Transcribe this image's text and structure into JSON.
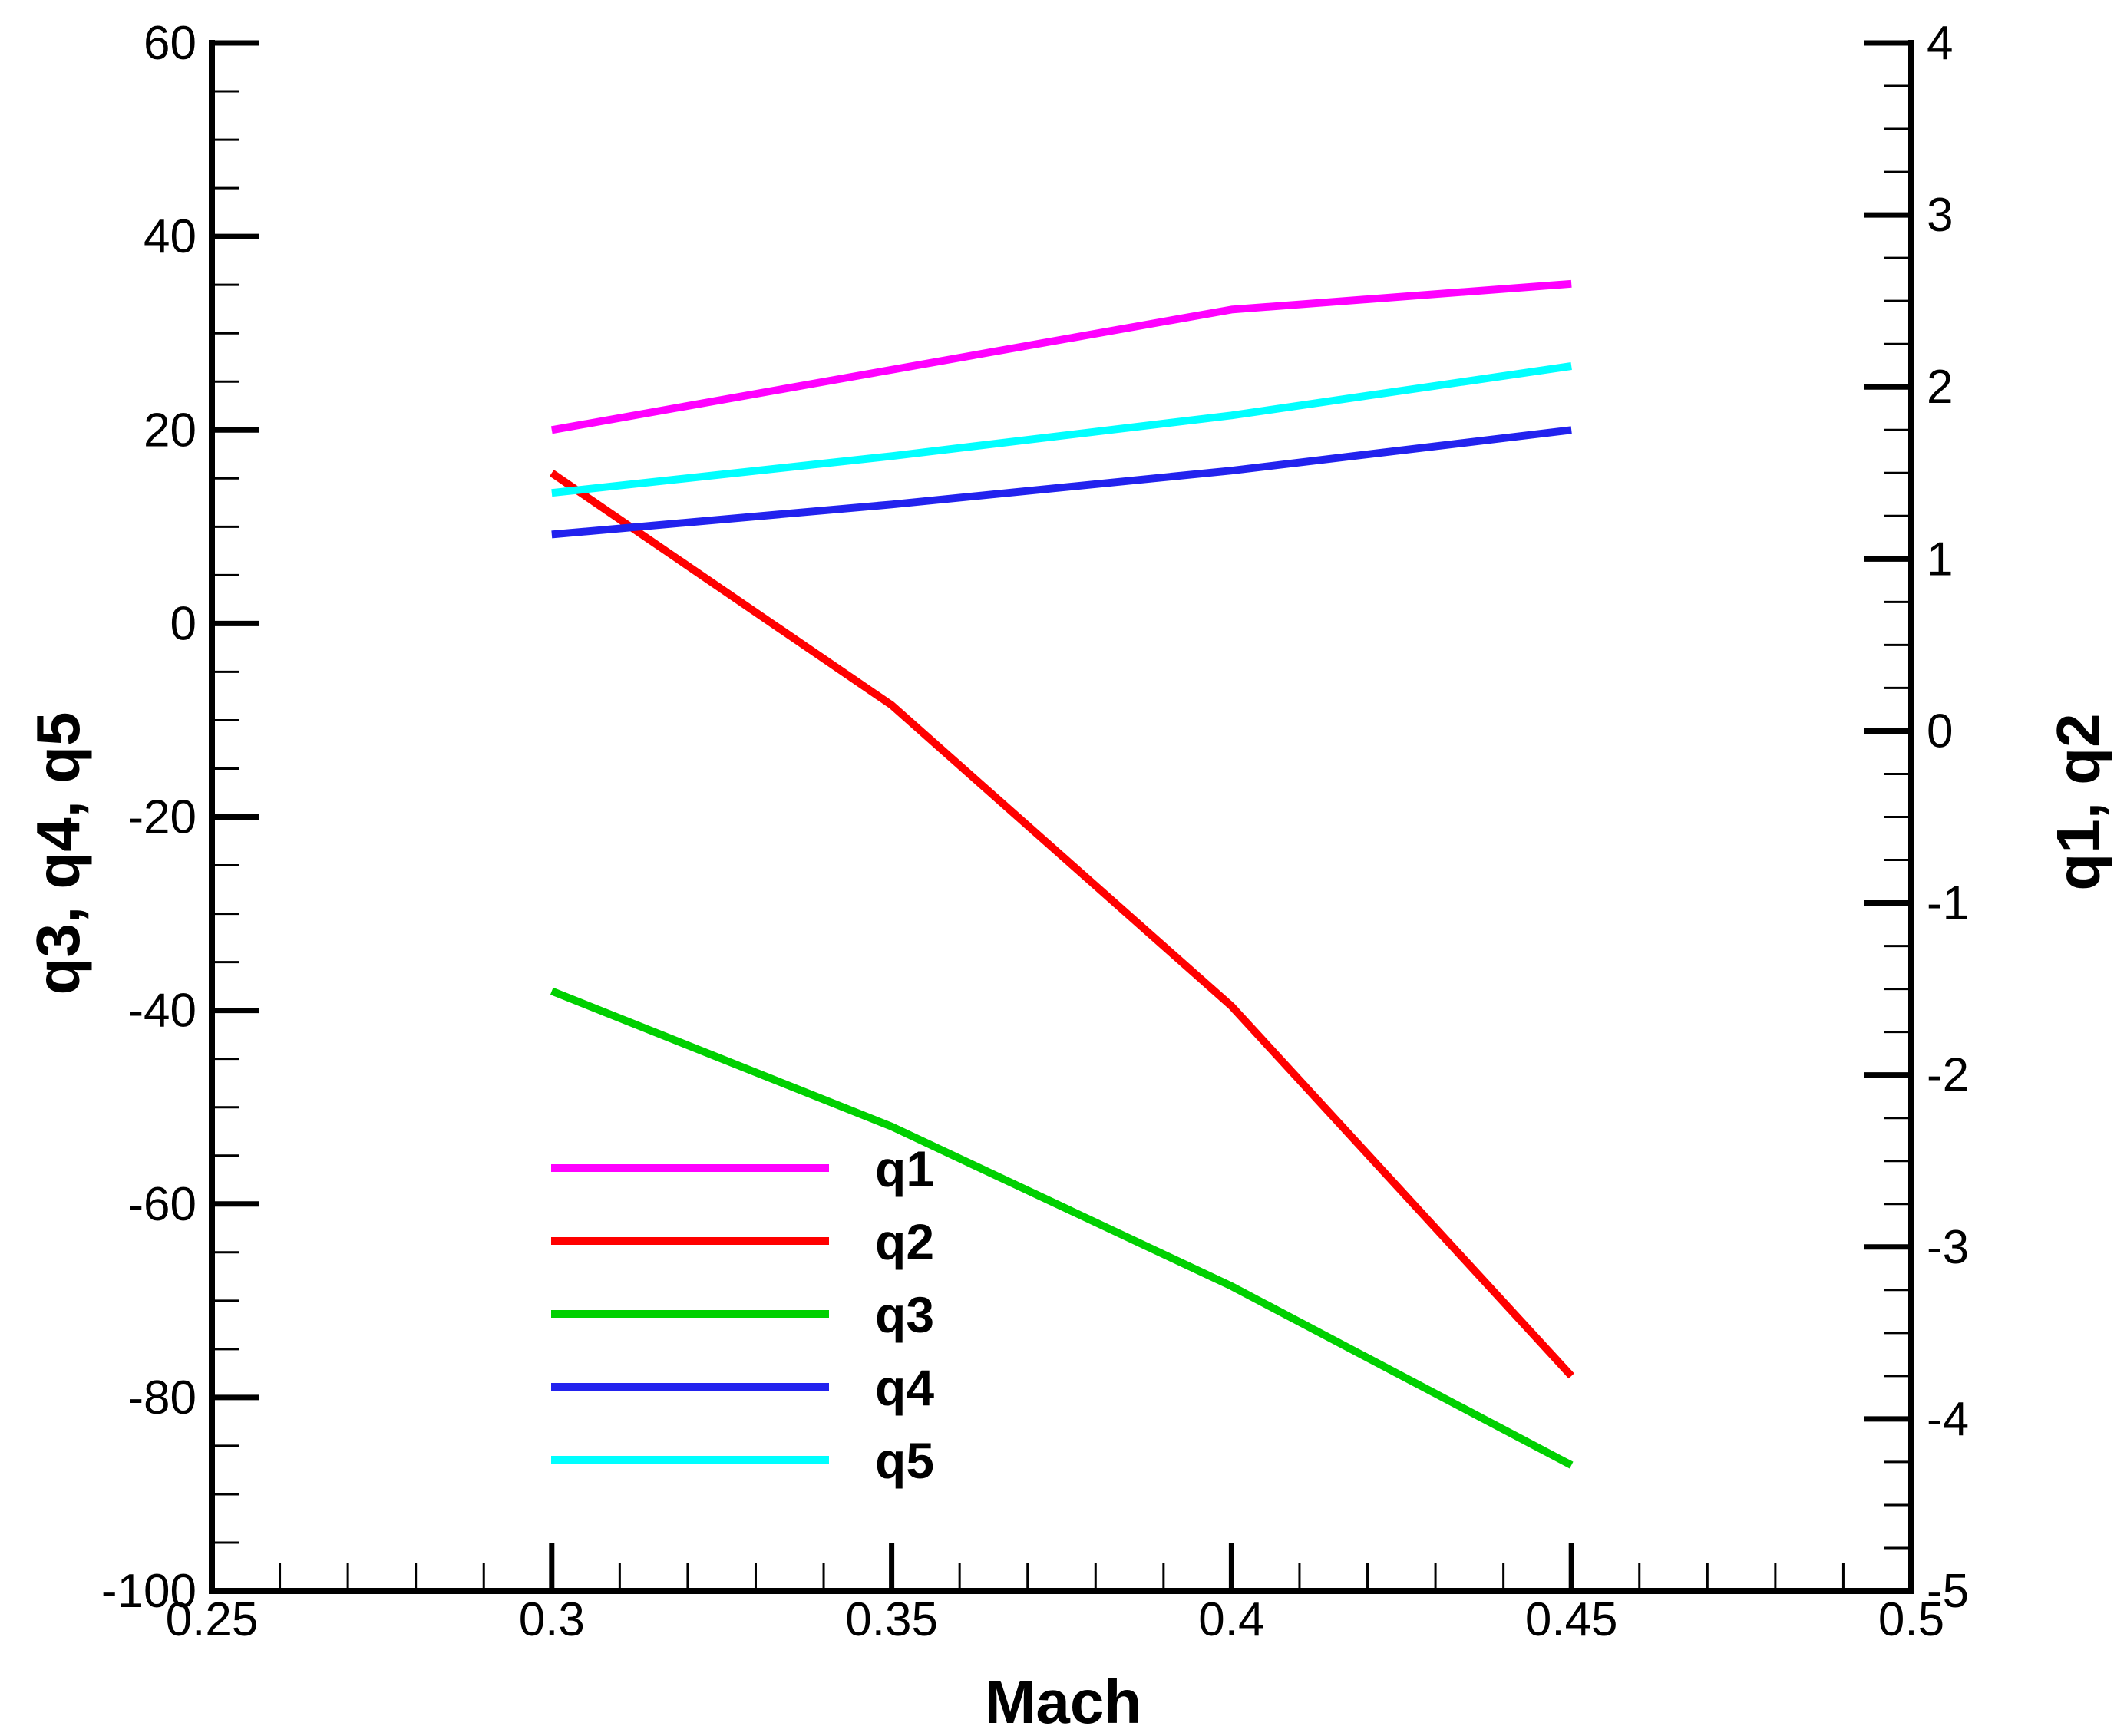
{
  "chart_data": {
    "type": "line",
    "xlabel": "Mach",
    "ylabel_left": "q3, q4, q5",
    "ylabel_right": "q1, q2",
    "xlim": [
      0.25,
      0.5
    ],
    "ylim_left": [
      -100,
      60
    ],
    "ylim_right": [
      -5,
      4
    ],
    "x_ticks": [
      "0.25",
      "0.3",
      "0.35",
      "0.4",
      "0.45",
      "0.5"
    ],
    "y_left_ticks": [
      "60",
      "40",
      "20",
      "0",
      "-20",
      "-40",
      "-60",
      "-80",
      "-100"
    ],
    "y_right_ticks": [
      "4",
      "3",
      "2",
      "1",
      "0",
      "-1",
      "-2",
      "-3",
      "-4",
      "-5"
    ],
    "grid": false,
    "legend_position": "bottom-left inside plot",
    "x": [
      0.3,
      0.35,
      0.4,
      0.45
    ],
    "series": [
      {
        "name": "q1",
        "axis": "right",
        "color": "#ff00ff",
        "values": [
          1.75,
          2.1,
          2.45,
          2.6
        ]
      },
      {
        "name": "q2",
        "axis": "right",
        "color": "#ff0000",
        "values": [
          1.5,
          0.15,
          -1.6,
          -3.75
        ]
      },
      {
        "name": "q3",
        "axis": "left",
        "color": "#00d000",
        "values": [
          -38,
          -52,
          -68.5,
          -87
        ]
      },
      {
        "name": "q4",
        "axis": "left",
        "color": "#2222ee",
        "values": [
          9.2,
          12.3,
          15.8,
          20
        ]
      },
      {
        "name": "q5",
        "axis": "left",
        "color": "#00ffff",
        "values": [
          13.5,
          17.3,
          21.5,
          26.6
        ]
      }
    ]
  }
}
